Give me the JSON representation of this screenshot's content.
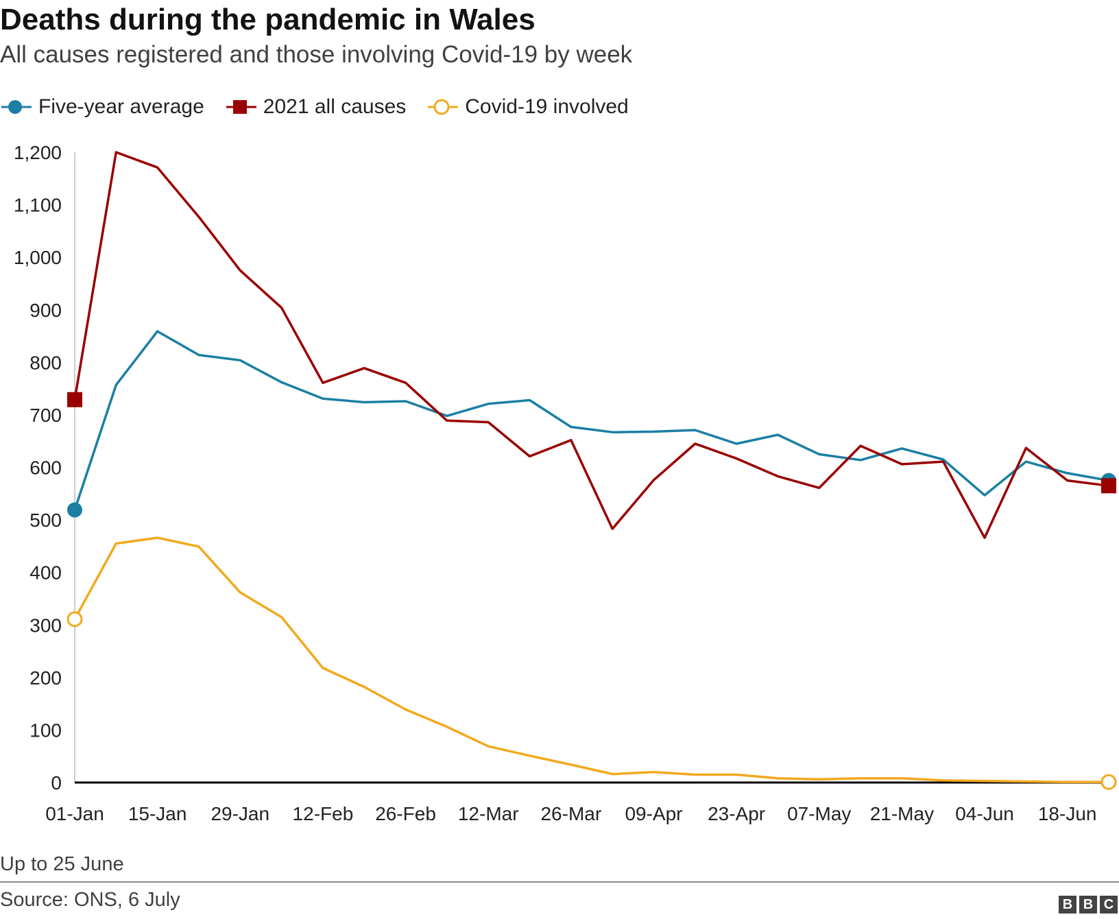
{
  "title": "Deaths during the pandemic in Wales",
  "subtitle": "All causes registered and those involving Covid-19 by week",
  "note": "Up to 25 June",
  "source": "Source: ONS, 6 July",
  "logo": [
    "B",
    "B",
    "C"
  ],
  "chart_data": {
    "type": "line",
    "x": [
      "01-Jan",
      "08-Jan",
      "15-Jan",
      "22-Jan",
      "29-Jan",
      "05-Feb",
      "12-Feb",
      "19-Feb",
      "26-Feb",
      "05-Mar",
      "12-Mar",
      "19-Mar",
      "26-Mar",
      "02-Apr",
      "09-Apr",
      "16-Apr",
      "23-Apr",
      "30-Apr",
      "07-May",
      "14-May",
      "21-May",
      "28-May",
      "04-Jun",
      "11-Jun",
      "18-Jun",
      "25-Jun"
    ],
    "x_tick_labels": [
      "01-Jan",
      "15-Jan",
      "29-Jan",
      "12-Feb",
      "26-Feb",
      "12-Mar",
      "26-Mar",
      "09-Apr",
      "23-Apr",
      "07-May",
      "21-May",
      "04-Jun",
      "18-Jun"
    ],
    "ylim": [
      0,
      1200
    ],
    "y_ticks": [
      0,
      100,
      200,
      300,
      400,
      500,
      600,
      700,
      800,
      900,
      1000,
      1100,
      1200
    ],
    "y_tick_labels": [
      "0",
      "100",
      "200",
      "300",
      "400",
      "500",
      "600",
      "700",
      "800",
      "900",
      "1,000",
      "1,100",
      "1,200"
    ],
    "legend_position": "top-left",
    "grid": false,
    "series": [
      {
        "name": "Five-year average",
        "color": "#1b7fa3",
        "marker": "circle-filled",
        "values": [
          519,
          757,
          859,
          814,
          804,
          762,
          731,
          724,
          726,
          698,
          721,
          728,
          677,
          667,
          668,
          671,
          645,
          662,
          625,
          614,
          636,
          615,
          547,
          611,
          589,
          575
        ]
      },
      {
        "name": "2021 all causes",
        "color": "#990000",
        "marker": "square-filled",
        "values": [
          729,
          1200,
          1171,
          1077,
          975,
          904,
          761,
          789,
          761,
          689,
          686,
          621,
          652,
          483,
          576,
          645,
          617,
          583,
          561,
          641,
          606,
          611,
          466,
          637,
          575,
          565
        ]
      },
      {
        "name": "Covid-19 involved",
        "color": "#f2a91e",
        "marker": "circle-open",
        "values": [
          311,
          455,
          466,
          449,
          362,
          315,
          218,
          182,
          139,
          106,
          69,
          51,
          34,
          16,
          20,
          15,
          15,
          8,
          6,
          8,
          8,
          4,
          3,
          2,
          1,
          1
        ]
      }
    ]
  }
}
